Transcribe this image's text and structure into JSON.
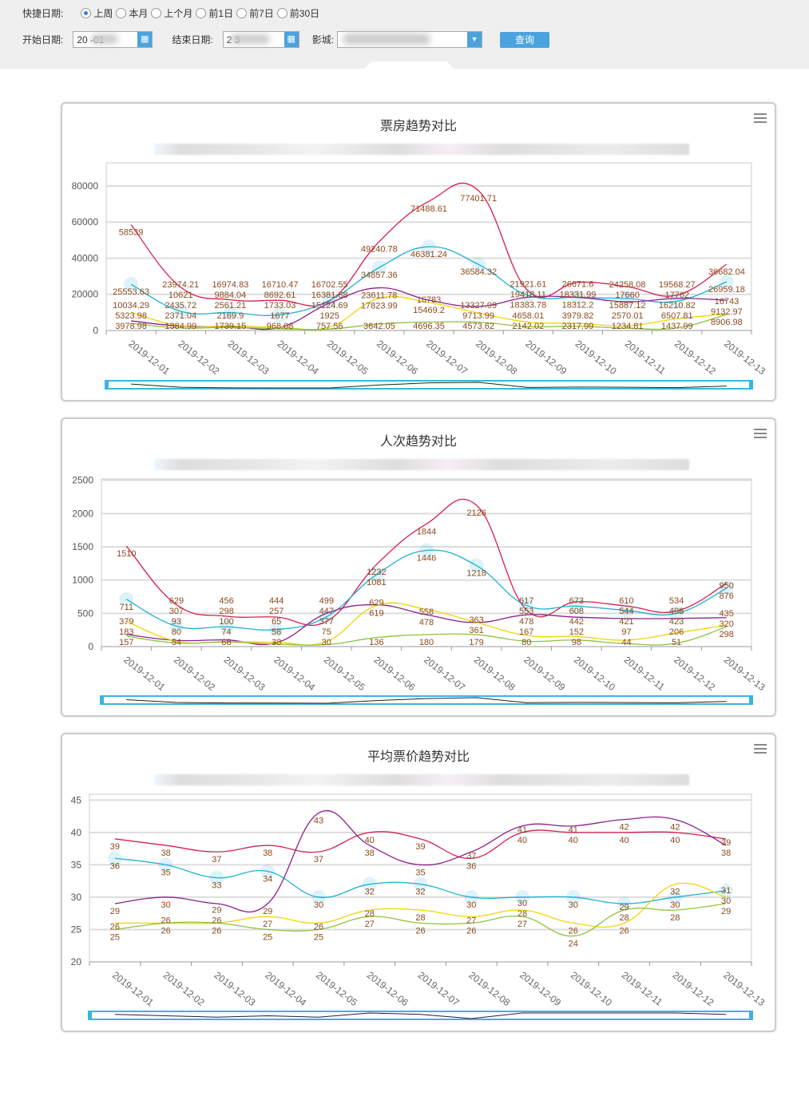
{
  "filters": {
    "quick_label": "快捷日期:",
    "quick_options": [
      {
        "label": "上周",
        "checked": true
      },
      {
        "label": "本月",
        "checked": false
      },
      {
        "label": "上个月",
        "checked": false
      },
      {
        "label": "前1日",
        "checked": false
      },
      {
        "label": "前7日",
        "checked": false
      },
      {
        "label": "前30日",
        "checked": false
      }
    ],
    "start_label": "开始日期:",
    "start_value": "20   -01",
    "end_label": "结束日期:",
    "end_value": "2      3",
    "cinema_label": "影城:",
    "query_button": "查询"
  },
  "colors": {
    "series": [
      "#d81e50",
      "#1fb0d8",
      "#8e1f8e",
      "#f2d20a",
      "#8cc43c"
    ],
    "label": "#8a4a1e",
    "accent": "#4aa3df"
  },
  "chart_data": [
    {
      "type": "line",
      "title": "票房趋势对比",
      "ylim": [
        0,
        92800
      ],
      "yticks": [
        0,
        20000,
        40000,
        60000,
        80000
      ],
      "categories": [
        "2019-12-01",
        "2019-12-02",
        "2019-12-03",
        "2019-12-04",
        "2019-12-05",
        "2019-12-06",
        "2019-12-07",
        "2019-12-08",
        "2019-12-09",
        "2019-12-10",
        "2019-12-11",
        "2019-12-12",
        "2019-12-13"
      ],
      "series": [
        {
          "values": [
            58539,
            23974.21,
            16974.83,
            16710.47,
            16381.88,
            49240.78,
            71488.61,
            77401.71,
            21921.61,
            26671.6,
            24258.08,
            19568.27,
            36682.04
          ]
        },
        {
          "values": [
            25553.63,
            10621,
            9884.04,
            8692.61,
            16702.55,
            34857.36,
            46381.24,
            36584.32,
            19418.11,
            18331.99,
            17660,
            16210.82,
            26959.18
          ]
        },
        {
          "values": [
            5323.98,
            2371.04,
            2169.9,
            1677,
            15124.69,
            23611.78,
            16783,
            13327.99,
            18383.78,
            18312.2,
            15887.12,
            17762,
            16743
          ]
        },
        {
          "values": [
            10034.29,
            2435.72,
            2561.21,
            1733.03,
            1925,
            17823.99,
            15469.2,
            9713.99,
            4658.01,
            3979.82,
            2570.01,
            6507.81,
            9132.97
          ]
        },
        {
          "values": [
            3978.98,
            1384.99,
            1739.15,
            968.08,
            757.56,
            3642.05,
            4696.35,
            4573.62,
            2142.02,
            2317.99,
            1234.81,
            1437.99,
            8906.98
          ]
        }
      ]
    },
    {
      "type": "line",
      "title": "人次趋势对比",
      "ylim": [
        0,
        2520
      ],
      "yticks": [
        0,
        500,
        1000,
        1500,
        2000,
        2500
      ],
      "categories": [
        "2019-12-01",
        "2019-12-02",
        "2019-12-03",
        "2019-12-04",
        "2019-12-05",
        "2019-12-06",
        "2019-12-07",
        "2019-12-08",
        "2019-12-09",
        "2019-12-10",
        "2019-12-11",
        "2019-12-12",
        "2019-12-13"
      ],
      "series": [
        {
          "values": [
            1510,
            629,
            456,
            444,
            377,
            1232,
            1844,
            2126,
            553,
            673,
            610,
            534,
            950
          ]
        },
        {
          "values": [
            711,
            307,
            298,
            257,
            447,
            1081,
            1446,
            1218,
            617,
            608,
            544,
            498,
            876
          ]
        },
        {
          "values": [
            183,
            93,
            100,
            58,
            499,
            629,
            478,
            361,
            478,
            442,
            421,
            423,
            435
          ]
        },
        {
          "values": [
            379,
            80,
            74,
            65,
            75,
            619,
            558,
            363,
            167,
            152,
            97,
            206,
            320
          ]
        },
        {
          "values": [
            157,
            54,
            68,
            38,
            30,
            136,
            180,
            179,
            80,
            98,
            44,
            51,
            298
          ]
        }
      ]
    },
    {
      "type": "line",
      "title": "平均票价趋势对比",
      "ylim": [
        20,
        45.9
      ],
      "yticks": [
        20,
        25,
        30,
        35,
        40,
        45
      ],
      "categories": [
        "2019-12-01",
        "2019-12-02",
        "2019-12-03",
        "2019-12-04",
        "2019-12-05",
        "2019-12-06",
        "2019-12-07",
        "2019-12-08",
        "2019-12-09",
        "2019-12-10",
        "2019-12-11",
        "2019-12-12",
        "2019-12-13"
      ],
      "series": [
        {
          "values": [
            39,
            38,
            37,
            38,
            37,
            40,
            39,
            36,
            40,
            40,
            40,
            40,
            39
          ]
        },
        {
          "values": [
            36,
            35,
            33,
            34,
            30,
            32,
            32,
            30,
            30,
            30,
            29,
            30,
            31
          ]
        },
        {
          "values": [
            29,
            30,
            29,
            29,
            43,
            38,
            35,
            37,
            41,
            41,
            42,
            42,
            38
          ]
        },
        {
          "values": [
            26,
            26,
            26,
            27,
            26,
            28,
            28,
            27,
            28,
            26,
            26,
            32,
            30
          ]
        },
        {
          "values": [
            25,
            26,
            26,
            25,
            25,
            27,
            26,
            26,
            27,
            24,
            28,
            28,
            29
          ]
        }
      ]
    }
  ]
}
